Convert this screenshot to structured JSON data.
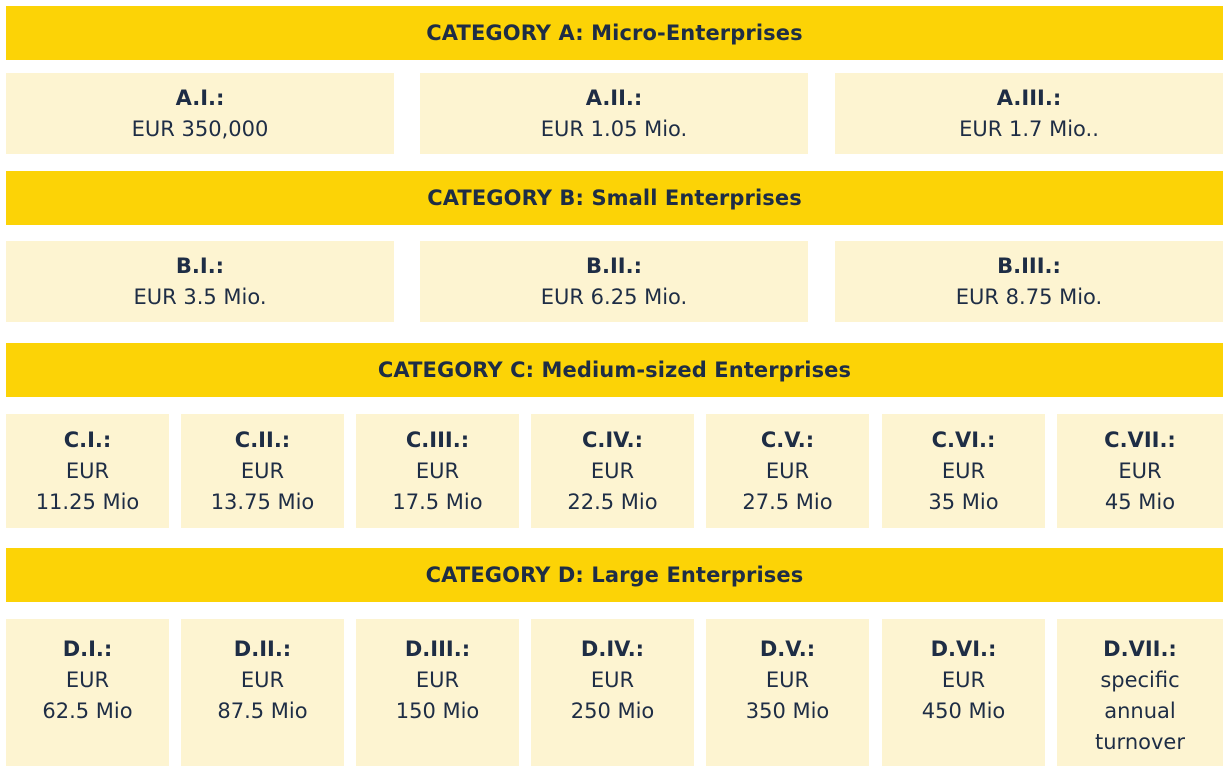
{
  "categories": [
    {
      "title": "CATEGORY A: Micro-Enterprises",
      "items": [
        {
          "code": "A.I.:",
          "value": "EUR 350,000"
        },
        {
          "code": "A.II.:",
          "value": "EUR 1.05 Mio."
        },
        {
          "code": "A.III.:",
          "value": "EUR 1.7 Mio.."
        }
      ]
    },
    {
      "title": "CATEGORY B: Small Enterprises",
      "items": [
        {
          "code": "B.I.:",
          "value": "EUR 3.5 Mio."
        },
        {
          "code": "B.II.:",
          "value": "EUR 6.25 Mio."
        },
        {
          "code": "B.III.:",
          "value": "EUR 8.75 Mio."
        }
      ]
    },
    {
      "title": "CATEGORY C: Medium-sized Enterprises",
      "items": [
        {
          "code": "C.I.:",
          "value": "EUR\n11.25 Mio"
        },
        {
          "code": "C.II.:",
          "value": "EUR\n13.75 Mio"
        },
        {
          "code": "C.III.:",
          "value": "EUR\n17.5 Mio"
        },
        {
          "code": "C.IV.:",
          "value": "EUR\n22.5 Mio"
        },
        {
          "code": "C.V.:",
          "value": "EUR\n27.5 Mio"
        },
        {
          "code": "C.VI.:",
          "value": "EUR\n35 Mio"
        },
        {
          "code": "C.VII.:",
          "value": "EUR\n45 Mio"
        }
      ]
    },
    {
      "title": "CATEGORY D: Large Enterprises",
      "items": [
        {
          "code": "D.I.:",
          "value": "EUR\n62.5 Mio"
        },
        {
          "code": "D.II.:",
          "value": "EUR\n87.5 Mio"
        },
        {
          "code": "D.III.:",
          "value": "EUR\n150 Mio"
        },
        {
          "code": "D.IV.:",
          "value": "EUR\n250 Mio"
        },
        {
          "code": "D.V.:",
          "value": "EUR\n350 Mio"
        },
        {
          "code": "D.VI.:",
          "value": "EUR\n450 Mio"
        },
        {
          "code": "D.VII.:",
          "value": "specific\nannual\nturnover"
        }
      ]
    }
  ],
  "colors": {
    "band": "#fcd306",
    "cell": "#fdf4d1",
    "text": "#1e2d45"
  }
}
